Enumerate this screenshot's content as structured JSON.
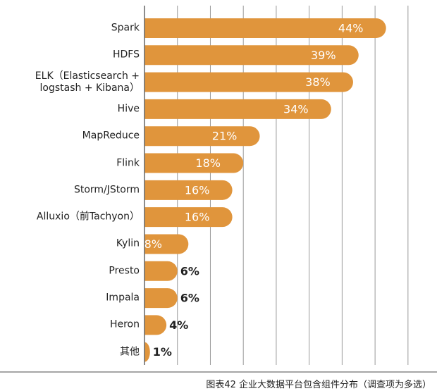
{
  "chart_data": {
    "type": "barh",
    "caption": "图表42 企业大数据平台包含组件分布（调查项为多选）",
    "categories": [
      "Spark",
      "HDFS",
      "ELK（Elasticsearch +\nlogstash + Kibana）",
      "Hive",
      "MapReduce",
      "Flink",
      "Storm/JStorm",
      "Alluxio（前Tachyon）",
      "Kylin",
      "Presto",
      "Impala",
      "Heron",
      "其他"
    ],
    "values": [
      44,
      39,
      38,
      34,
      21,
      18,
      16,
      16,
      8,
      6,
      6,
      4,
      1
    ],
    "value_labels": [
      "44%",
      "39%",
      "38%",
      "34%",
      "21%",
      "18%",
      "16%",
      "16%",
      "8%",
      "6%",
      "6%",
      "4%",
      "1%"
    ],
    "color": "#e0953c",
    "xlim": [
      0,
      52
    ],
    "xticks": [
      0,
      6,
      12,
      18,
      24,
      30,
      36,
      42,
      48
    ],
    "grid": true
  }
}
